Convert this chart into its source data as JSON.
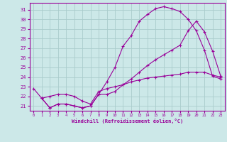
{
  "xlabel": "Windchill (Refroidissement éolien,°C)",
  "background_color": "#cce8e8",
  "grid_color": "#aacccc",
  "line_color": "#990099",
  "x_ticks": [
    0,
    1,
    2,
    3,
    4,
    5,
    6,
    7,
    8,
    9,
    10,
    11,
    12,
    13,
    14,
    15,
    16,
    17,
    18,
    19,
    20,
    21,
    22,
    23
  ],
  "y_ticks": [
    21,
    22,
    23,
    24,
    25,
    26,
    27,
    28,
    29,
    30,
    31
  ],
  "ylim": [
    20.5,
    31.7
  ],
  "xlim": [
    -0.5,
    23.5
  ],
  "line1_x": [
    0,
    1,
    2,
    3,
    4,
    5,
    6,
    7,
    8,
    9,
    10,
    11,
    12,
    13,
    14,
    15,
    16,
    17,
    18,
    19,
    20,
    21,
    22,
    23
  ],
  "line1_y": [
    22.8,
    21.8,
    20.8,
    21.2,
    21.2,
    21.0,
    20.8,
    21.0,
    22.2,
    23.5,
    25.0,
    27.2,
    28.3,
    29.8,
    30.5,
    31.1,
    31.3,
    31.1,
    30.8,
    30.0,
    28.8,
    26.8,
    24.1,
    23.8
  ],
  "line2_x": [
    1,
    2,
    3,
    4,
    5,
    6,
    7,
    8,
    9,
    10,
    11,
    12,
    13,
    14,
    15,
    16,
    17,
    18,
    19,
    20,
    21,
    22,
    23
  ],
  "line2_y": [
    21.8,
    20.8,
    21.2,
    21.2,
    21.0,
    20.8,
    21.0,
    22.2,
    22.2,
    22.5,
    23.2,
    23.8,
    24.5,
    25.2,
    25.8,
    26.3,
    26.8,
    27.3,
    28.8,
    29.8,
    28.7,
    26.7,
    24.1
  ],
  "line3_x": [
    1,
    2,
    3,
    4,
    5,
    6,
    7,
    8,
    9,
    10,
    11,
    12,
    13,
    14,
    15,
    16,
    17,
    18,
    19,
    20,
    21,
    22,
    23
  ],
  "line3_y": [
    21.8,
    22.0,
    22.2,
    22.2,
    22.0,
    21.5,
    21.2,
    22.5,
    22.8,
    23.0,
    23.2,
    23.5,
    23.7,
    23.9,
    24.0,
    24.1,
    24.2,
    24.3,
    24.5,
    24.5,
    24.5,
    24.2,
    24.0
  ]
}
